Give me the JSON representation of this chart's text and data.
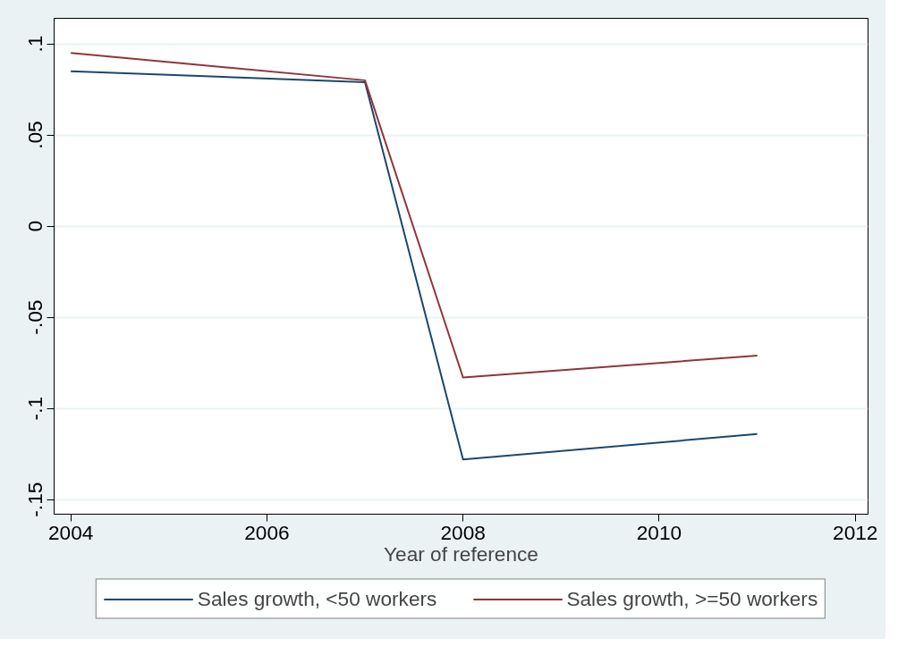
{
  "chart_data": {
    "type": "line",
    "xlabel": "Year of reference",
    "x": [
      2004,
      2007,
      2008,
      2011
    ],
    "series": [
      {
        "name": "Sales growth, <50 workers",
        "color": "#1a476f",
        "values": [
          0.085,
          0.079,
          -0.128,
          -0.114
        ]
      },
      {
        "name": "Sales growth, >=50 workers",
        "color": "#90353b",
        "values": [
          0.095,
          0.08,
          -0.083,
          -0.071
        ]
      }
    ],
    "xlim": [
      2003.83,
      2012.13
    ],
    "ylim": [
      -0.158,
      0.114
    ],
    "xticks": [
      2004,
      2006,
      2008,
      2010,
      2012
    ],
    "yticks": [
      {
        "value": -0.15,
        "label": "-.15"
      },
      {
        "value": -0.1,
        "label": "-.1"
      },
      {
        "value": -0.05,
        "label": "-.05"
      },
      {
        "value": 0,
        "label": "0"
      },
      {
        "value": 0.05,
        "label": ".05"
      },
      {
        "value": 0.1,
        "label": ".1"
      }
    ],
    "grid": "y",
    "legend": "bottom",
    "line_style": "solid"
  }
}
